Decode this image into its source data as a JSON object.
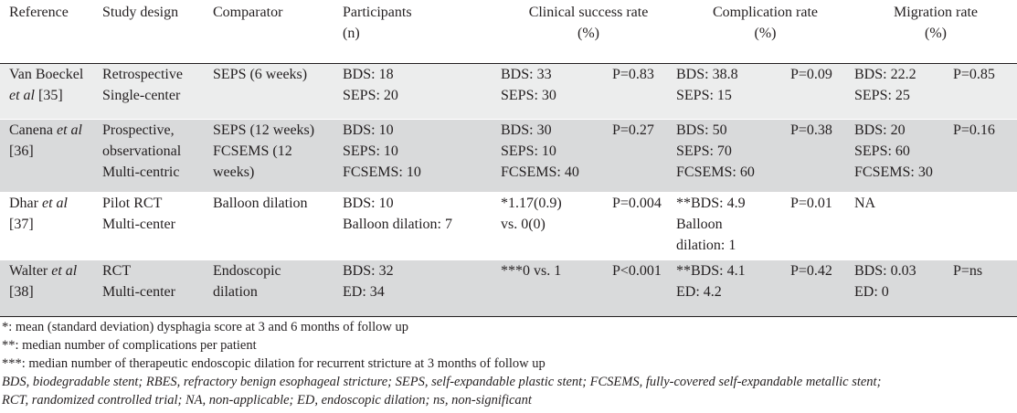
{
  "headers": [
    {
      "line1": "Reference",
      "line2": ""
    },
    {
      "line1": "Study design",
      "line2": ""
    },
    {
      "line1": "Comparator",
      "line2": ""
    },
    {
      "line1": "Participants",
      "line2": "(n)"
    },
    {
      "line1": "Clinical success rate",
      "line2": "(%)"
    },
    {
      "line1": "Complication rate",
      "line2": "(%)"
    },
    {
      "line1": "Migration rate",
      "line2": "(%)"
    }
  ],
  "rows": [
    {
      "ref_a": "Van Boeckel",
      "ref_b": "et al",
      "ref_c": " [35]",
      "design": [
        "Retrospective",
        "Single-center"
      ],
      "comparator": [
        "SEPS (6 weeks)"
      ],
      "participants": [
        "BDS: 18",
        "SEPS: 20"
      ],
      "clinical": [
        "BDS: 33",
        "SEPS: 30"
      ],
      "clinical_p": "P=0.83",
      "complication": [
        "BDS: 38.8",
        "SEPS: 15"
      ],
      "complication_p": "P=0.09",
      "migration": [
        "BDS: 22.2",
        "SEPS: 25"
      ],
      "migration_p": "P=0.85"
    },
    {
      "ref_a": "Canena ",
      "ref_b": "et al",
      "ref_c": "[36]",
      "design": [
        "Prospective,",
        "observational",
        "Multi-centric"
      ],
      "comparator": [
        "SEPS (12 weeks)",
        "FCSEMS (12",
        "weeks)"
      ],
      "participants": [
        "BDS: 10",
        "SEPS: 10",
        "FCSEMS: 10"
      ],
      "clinical": [
        "BDS: 30",
        "SEPS: 10",
        "FCSEMS: 40"
      ],
      "clinical_p": "P=0.27",
      "complication": [
        "BDS: 50",
        "SEPS: 70",
        "FCSEMS: 60"
      ],
      "complication_p": "P=0.38",
      "migration": [
        "BDS: 20",
        "SEPS: 60",
        "FCSEMS: 30"
      ],
      "migration_p": "P=0.16"
    },
    {
      "ref_a": "Dhar ",
      "ref_b": "et al",
      "ref_c": "[37]",
      "design": [
        "Pilot RCT",
        "Multi-center"
      ],
      "comparator": [
        "Balloon dilation"
      ],
      "participants": [
        "BDS: 10",
        "Balloon dilation: 7"
      ],
      "clinical": [
        "*1.17(0.9)",
        "vs. 0(0)"
      ],
      "clinical_p": "P=0.004",
      "complication": [
        "**BDS: 4.9",
        "Balloon",
        "dilation: 1"
      ],
      "complication_p": "P=0.01",
      "migration": [
        "NA"
      ],
      "migration_p": ""
    },
    {
      "ref_a": "Walter ",
      "ref_b": "et al",
      "ref_c": "[38]",
      "design": [
        "RCT",
        "Multi-center"
      ],
      "comparator": [
        "Endoscopic",
        "dilation"
      ],
      "participants": [
        "BDS: 32",
        "ED: 34"
      ],
      "clinical": [
        "***0 vs. 1"
      ],
      "clinical_p": "P<0.001",
      "complication": [
        "**BDS: 4.1",
        "ED: 4.2"
      ],
      "complication_p": "P=0.42",
      "migration": [
        "BDS: 0.03",
        "ED: 0"
      ],
      "migration_p": "P=ns"
    }
  ],
  "notes": [
    "*: mean (standard deviation) dysphagia score at 3 and 6 months of follow up",
    "**: median number of complications per patient",
    "***: median number of therapeutic endoscopic dilation for recurrent stricture at 3 months of follow up"
  ],
  "abbreviations": [
    "BDS, biodegradable stent; RBES, refractory benign esophageal stricture; SEPS, self-expandable plastic stent; FCSEMS, fully-covered self-expandable metallic stent;",
    "RCT, randomized controlled trial; NA, non-applicable; ED, endoscopic dilation; ns, non-significant"
  ]
}
